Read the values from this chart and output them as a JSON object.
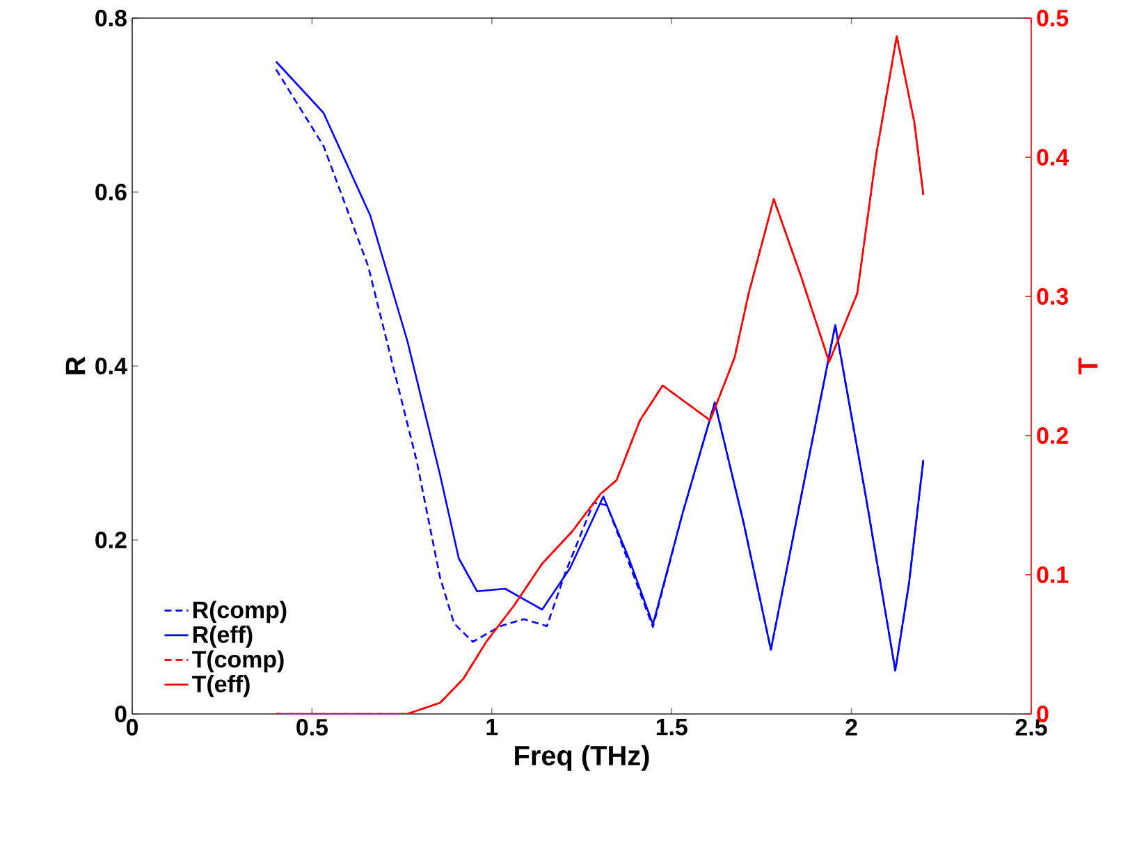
{
  "chart_data": {
    "type": "line",
    "xlabel": "Freq (THz)",
    "ylabel": "R",
    "y2label": "T",
    "xlim": [
      0,
      2.5
    ],
    "xticks": [
      0,
      0.5,
      1,
      1.5,
      2,
      2.5
    ],
    "ylim": [
      0,
      0.8
    ],
    "yticks": [
      0,
      0.2,
      0.4,
      0.6,
      0.8
    ],
    "y2lim": [
      0,
      0.5
    ],
    "y2ticks": [
      0,
      0.1,
      0.2,
      0.3,
      0.4,
      0.5
    ],
    "legend": "bottom left",
    "grid": false,
    "marker": "none",
    "series": [
      {
        "name": "R(comp)",
        "color": "#0000ff",
        "line_style": "dashed",
        "x": [
          0.4,
          0.532,
          0.656,
          0.727,
          0.791,
          0.856,
          0.895,
          0.947,
          1.024,
          1.089,
          1.153,
          1.205,
          1.283,
          1.32,
          1.38,
          1.448,
          1.53,
          1.62,
          1.7,
          1.776,
          1.865,
          1.955,
          2.04,
          2.122,
          2.16,
          2.2
        ],
        "values": [
          0.741,
          0.653,
          0.515,
          0.397,
          0.291,
          0.157,
          0.104,
          0.083,
          0.101,
          0.109,
          0.101,
          0.163,
          0.243,
          0.24,
          0.175,
          0.1,
          0.23,
          0.358,
          0.22,
          0.074,
          0.26,
          0.447,
          0.25,
          0.05,
          0.15,
          0.292
        ]
      },
      {
        "name": "R(eff)",
        "color": "#0000ff",
        "line_style": "solid",
        "x": [
          0.4,
          0.532,
          0.662,
          0.765,
          0.856,
          0.908,
          0.959,
          1.037,
          1.14,
          1.218,
          1.31,
          1.38,
          1.448,
          1.53,
          1.62,
          1.7,
          1.776,
          1.865,
          1.955,
          2.04,
          2.122,
          2.16,
          2.2
        ],
        "values": [
          0.75,
          0.691,
          0.573,
          0.429,
          0.275,
          0.179,
          0.141,
          0.144,
          0.12,
          0.168,
          0.25,
          0.18,
          0.103,
          0.23,
          0.358,
          0.22,
          0.074,
          0.26,
          0.447,
          0.25,
          0.05,
          0.15,
          0.292
        ]
      },
      {
        "name": "T(comp)",
        "color": "#ff0000",
        "line_style": "dashed",
        "axis": "y2",
        "x": [
          0.4,
          0.765,
          0.856,
          0.92,
          0.985,
          1.062,
          1.14,
          1.223,
          1.302,
          1.347,
          1.412,
          1.475,
          1.607,
          1.675,
          1.714,
          1.784,
          1.859,
          1.938,
          2.016,
          2.069,
          2.126,
          2.175,
          2.2
        ],
        "values": [
          0,
          0,
          0.008,
          0.025,
          0.052,
          0.078,
          0.108,
          0.131,
          0.158,
          0.168,
          0.211,
          0.236,
          0.211,
          0.256,
          0.302,
          0.37,
          0.315,
          0.253,
          0.302,
          0.402,
          0.487,
          0.425,
          0.373
        ]
      },
      {
        "name": "T(eff)",
        "color": "#ff0000",
        "line_style": "solid",
        "axis": "y2",
        "x": [
          0.4,
          0.765,
          0.856,
          0.92,
          0.985,
          1.062,
          1.14,
          1.223,
          1.302,
          1.347,
          1.412,
          1.475,
          1.607,
          1.675,
          1.714,
          1.784,
          1.859,
          1.938,
          2.016,
          2.069,
          2.126,
          2.175,
          2.2
        ],
        "values": [
          0,
          0,
          0.008,
          0.025,
          0.052,
          0.078,
          0.108,
          0.131,
          0.158,
          0.168,
          0.211,
          0.236,
          0.211,
          0.256,
          0.302,
          0.37,
          0.315,
          0.253,
          0.302,
          0.402,
          0.487,
          0.425,
          0.373
        ]
      }
    ]
  }
}
